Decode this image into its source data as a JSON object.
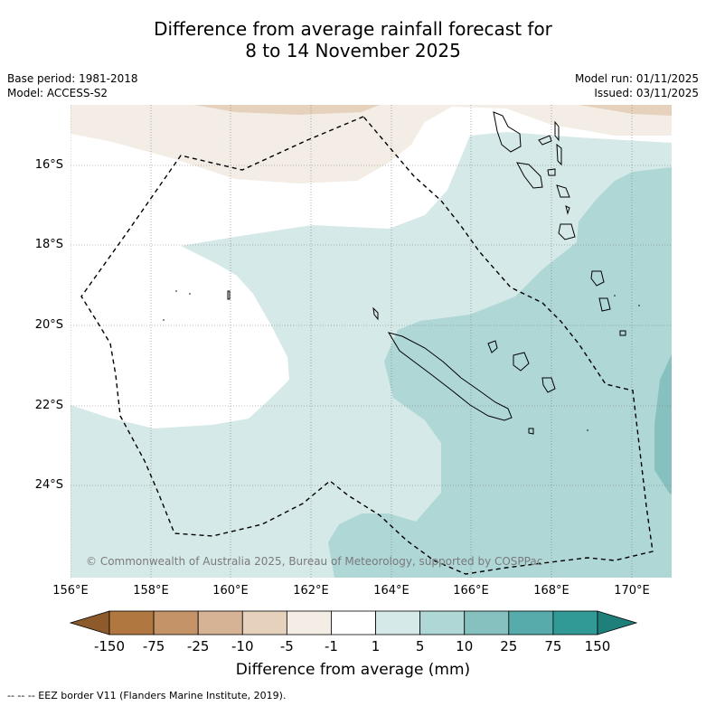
{
  "title_line1": "Difference from average rainfall forecast for",
  "title_line2": "8 to 14 November 2025",
  "base_period": "Base period: 1981-2018",
  "model": "Model: ACCESS-S2",
  "model_run": "Model run: 01/11/2025",
  "issued": "Issued: 03/11/2025",
  "lat_labels": [
    "16°S",
    "18°S",
    "20°S",
    "22°S",
    "24°S"
  ],
  "lon_labels": [
    "156°E",
    "158°E",
    "160°E",
    "162°E",
    "164°E",
    "166°E",
    "168°E",
    "170°E"
  ],
  "copyright": "© Commonwealth of Australia 2025, Bureau of Meteorology, supported by COSPPac",
  "colorbar": {
    "labels": [
      "-150",
      "-75",
      "-25",
      "-10",
      "-5",
      "-1",
      "1",
      "5",
      "10",
      "25",
      "75",
      "150"
    ],
    "colors": [
      "#8c5a2b",
      "#b07840",
      "#c49468",
      "#d6b394",
      "#e6d1bd",
      "#f3ede6",
      "#ffffff",
      "#d5e9e8",
      "#aed7d6",
      "#86c1c0",
      "#58abab",
      "#319a96",
      "#1f7f7b"
    ],
    "title": "Difference from average (mm)"
  },
  "footer": "--  --  -- EEZ border V11 (Flanders Marine Institute, 2019)."
}
